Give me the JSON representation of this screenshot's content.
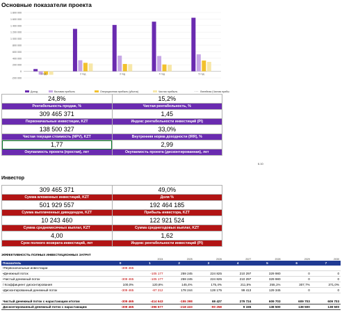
{
  "page_title": "Основные показатели проекта",
  "chart_data": {
    "type": "bar",
    "categories": [
      "1 год",
      "2 год",
      "3 год",
      "4 год",
      "5 год"
    ],
    "series": [
      {
        "name": "Доход",
        "color": "#6a2bb0",
        "values": [
          70000,
          1300000,
          1420000,
          1520000,
          1640000
        ]
      },
      {
        "name": "Валовая прибыль",
        "color": "#c6a6e6",
        "values": [
          -100000,
          340000,
          480000,
          470000,
          520000
        ]
      },
      {
        "name": "Операционная прибыль (убыток)",
        "color": "#f2c12e",
        "values": [
          -105000,
          260000,
          225000,
          210000,
          330000
        ]
      },
      {
        "name": "Чистая прибыль",
        "color": "#f7e7a8",
        "values": [
          -105000,
          240000,
          220000,
          200000,
          290000
        ]
      }
    ],
    "legend_extra": "Линейная (Чистая прибыль)",
    "yticks": [
      "1 800 000",
      "1 600 000",
      "1 400 000",
      "1 200 000",
      "1 000 000",
      "800 000",
      "600 000",
      "400 000",
      "200 000",
      "0",
      "-200 000"
    ],
    "ylim": [
      -200000,
      1800000
    ],
    "legend_position": "bottom"
  },
  "main_kpis": [
    {
      "value": "24,8%",
      "label": "Рентабельность продаж, %"
    },
    {
      "value": "15,2%",
      "label": "Чистая рентабельность, %"
    },
    {
      "value": "309 465 371",
      "label": "Первоначальные инвестиции, KZT"
    },
    {
      "value": "1,45",
      "label": "Индекс рентабельности инвестиций (PI)"
    },
    {
      "value": "138 500 327",
      "label": "Чистая текущая стоимость (NPV), KZT"
    },
    {
      "value": "33,0%",
      "label": "Внутренняя норма доходности (IRR), %"
    },
    {
      "value": "1,77",
      "label": "Окупаемость проекта (простая), лет"
    },
    {
      "value": "2,99",
      "label": "Окупаемость проекта (дисконтированная), лет"
    }
  ],
  "side_note": "6.10",
  "investor_title": "Инвестор",
  "investor_kpis": [
    {
      "value": "309 465 371",
      "label": "Сумма вложенных инвестиций, KZT"
    },
    {
      "value": "49,0%",
      "label": "Доля %"
    },
    {
      "value": "501 929 557",
      "label": "Сумма выплаченных дивидендов, KZT"
    },
    {
      "value": "192 464 185",
      "label": "Прибыль инвестора, KZT"
    },
    {
      "value": "10 243 460",
      "label": "Сумма среднемесячных выплат, KZT"
    },
    {
      "value": "122 921 524",
      "label": "Сумма среднегодовых выплат, KZT"
    },
    {
      "value": "4,00",
      "label": "Срок полного возврата инвестиций, лет"
    },
    {
      "value": "1,62",
      "label": "Индекс рентабельности инвестиций (PI)"
    }
  ],
  "efficiency_title": "ЭФФЕКТИВНОСТЬ ПОЛНЫХ ИНВЕСТИЦИОННЫХ ЗАТРАТ",
  "efficiency": {
    "years": [
      "",
      "",
      "2024",
      "2025",
      "2026",
      "2027",
      "2028",
      "2029",
      "2030"
    ],
    "header": [
      "Показатель",
      "0",
      "1",
      "2",
      "3",
      "4",
      "5",
      "6",
      "7"
    ],
    "rows": [
      [
        "•Первоначальные инвестиции",
        "-309 465",
        "",
        "",
        "",
        "",
        "",
        "",
        ""
      ],
      [
        "•Денежный поток",
        "",
        "-105 177",
        "259 245",
        "224 825",
        "210 297",
        "329 980",
        "0",
        "0"
      ],
      [
        "•Чистый денежный поток",
        "-309 465",
        "-105 177",
        "259 245",
        "224 825",
        "210 297",
        "329 980",
        "0",
        "0"
      ],
      [
        "/ Коэффициент дисконтирования",
        "100,0%",
        "120,6%",
        "145,4%",
        "175,4%",
        "211,5%",
        "255,1%",
        "307,7%",
        "371,0%"
      ],
      [
        "•Дисконтированный денежный поток",
        "-309 465",
        "-87 212",
        "178 244",
        "128 175",
        "99 413",
        "129 345",
        "0",
        "0"
      ]
    ],
    "totals": [
      [
        "Чистый денежный поток с нарастающим итогом",
        "-309 465",
        "-414 643",
        "-155 398",
        "69 427",
        "279 724",
        "609 703",
        "609 703",
        "609 703"
      ],
      [
        "Дисконтированный денежный поток с нарастающим",
        "-309 465",
        "-396 677",
        "-218 433",
        "-90 258",
        "9 155",
        "138 500",
        "138 500",
        "138 500"
      ]
    ]
  }
}
